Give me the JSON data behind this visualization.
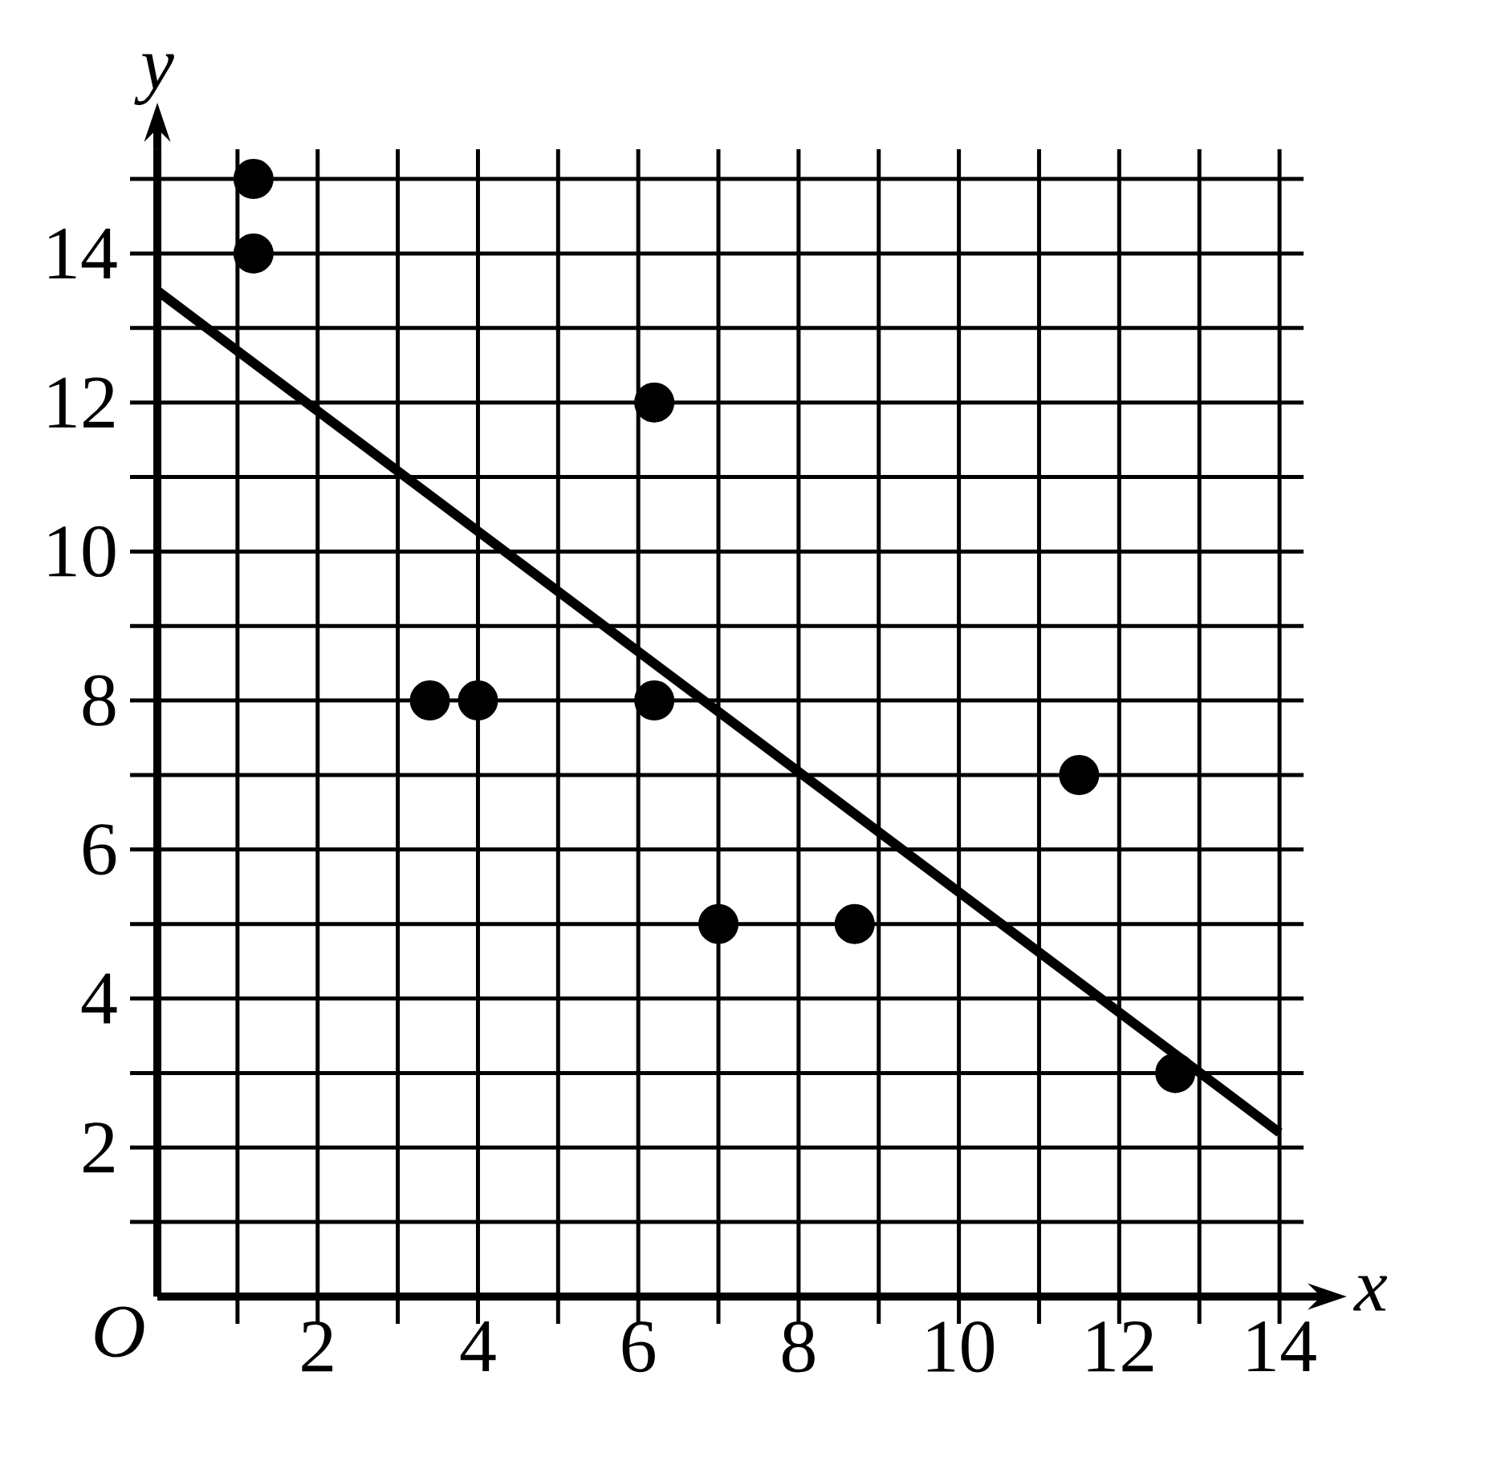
{
  "chart_data": {
    "type": "scatter",
    "xlabel": "x",
    "ylabel": "y",
    "annotations": [
      "O"
    ],
    "series": [
      {
        "color": "#000000",
        "marker": "circle",
        "x": [
          1.2,
          1.2,
          3.4,
          4,
          6.2,
          6.2,
          7,
          8.7,
          11.5,
          12.7
        ],
        "values": [
          15,
          14,
          8,
          8,
          12,
          8,
          5,
          5,
          7,
          3
        ]
      },
      {
        "type": "line",
        "color": "#000000",
        "line_style": "solid",
        "x": [
          0,
          14
        ],
        "values": [
          13.5,
          2.2
        ]
      }
    ],
    "xlim": [
      0,
      14.3
    ],
    "ylim": [
      0,
      15.4
    ],
    "xticks": [
      {
        "value": 1,
        "label": null
      },
      2,
      {
        "value": 3,
        "label": null
      },
      4,
      {
        "value": 5,
        "label": null
      },
      6,
      {
        "value": 7,
        "label": null
      },
      8,
      {
        "value": 9,
        "label": null
      },
      10,
      {
        "value": 11,
        "label": null
      },
      12,
      {
        "value": 13,
        "label": null
      },
      14
    ],
    "yticks": [
      {
        "value": 1,
        "label": null
      },
      2,
      {
        "value": 3,
        "label": null
      },
      4,
      {
        "value": 5,
        "label": null
      },
      6,
      {
        "value": 7,
        "label": null
      },
      8,
      {
        "value": 9,
        "label": null
      },
      10,
      {
        "value": 11,
        "label": null
      },
      12,
      {
        "value": 13,
        "label": null
      },
      14,
      {
        "value": 15,
        "label": null
      }
    ],
    "grid": true
  }
}
